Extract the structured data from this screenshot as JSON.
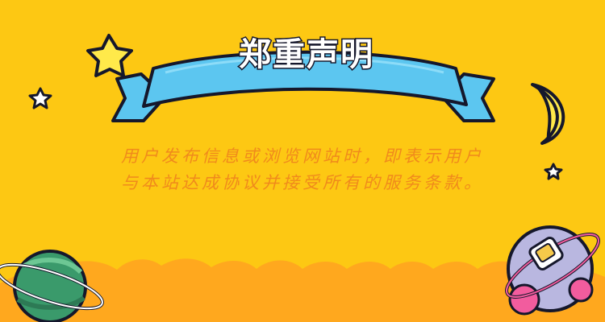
{
  "banner": {
    "title": "郑重声明"
  },
  "notice": {
    "text": "用户发布信息或浏览网站时，即表示用户与本站达成协议并接受所有的服务条款。"
  },
  "colors": {
    "background": "#FDC813",
    "ribbon": "#5CC6F0",
    "ribbon_outline": "#15172b",
    "text": "#F08A1C",
    "cloud": "#FFA81E",
    "star": "#FFE94A",
    "planet_green": "#3A9A6B",
    "planet_pink": "#F25C9E"
  },
  "icons": [
    "star-icon",
    "moon-icon",
    "planet-icon",
    "spaceship-planet-icon",
    "ribbon-banner"
  ]
}
